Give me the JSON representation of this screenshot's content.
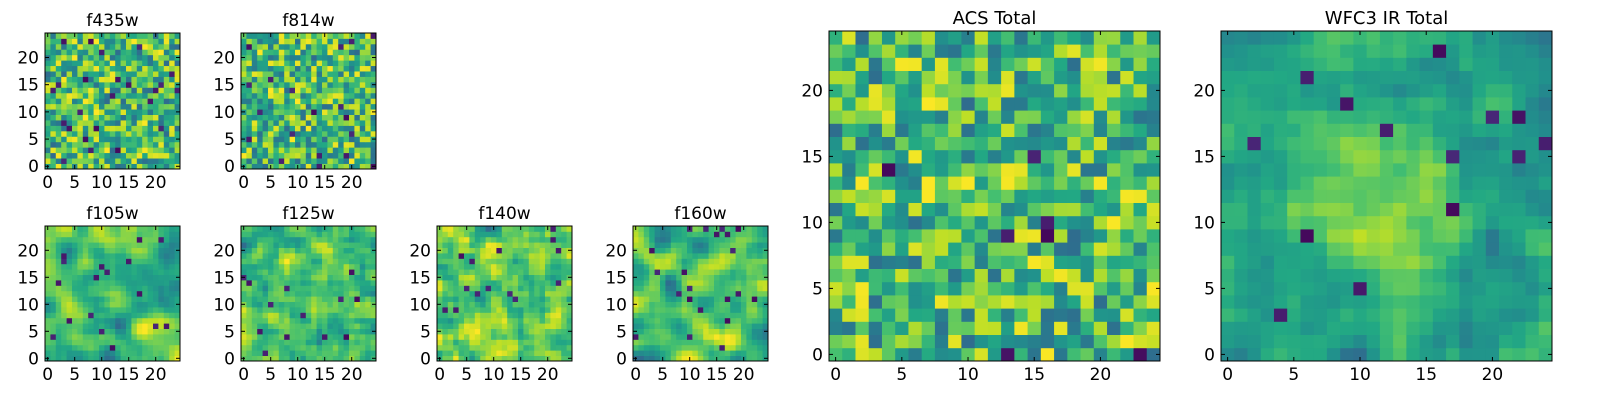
{
  "chart_data": [
    {
      "type": "heatmap",
      "title": "f435w",
      "colormap": "viridis",
      "grid": false,
      "xlim": [
        0,
        24
      ],
      "ylim": [
        0,
        24
      ],
      "xticks": [
        0,
        5,
        10,
        15,
        20
      ],
      "yticks": [
        0,
        5,
        10,
        15,
        20
      ],
      "xtick_labels": [
        "0",
        "5",
        "10",
        "15",
        "20"
      ],
      "ytick_labels": [
        "0",
        "5",
        "10",
        "15",
        "20"
      ],
      "value_range": [
        0,
        1
      ],
      "texture": "pixel noise",
      "seed": 101,
      "smoothness": 0
    },
    {
      "type": "heatmap",
      "title": "f814w",
      "colormap": "viridis",
      "grid": false,
      "xlim": [
        0,
        24
      ],
      "ylim": [
        0,
        24
      ],
      "xticks": [
        0,
        5,
        10,
        15,
        20
      ],
      "yticks": [
        0,
        5,
        10,
        15,
        20
      ],
      "xtick_labels": [
        "0",
        "5",
        "10",
        "15",
        "20"
      ],
      "ytick_labels": [
        "0",
        "5",
        "10",
        "15",
        "20"
      ],
      "value_range": [
        0,
        1
      ],
      "texture": "pixel noise",
      "seed": 202,
      "smoothness": 0
    },
    {
      "type": "heatmap",
      "title": "f105w",
      "colormap": "viridis",
      "grid": false,
      "xlim": [
        0,
        24
      ],
      "ylim": [
        0,
        24
      ],
      "xticks": [
        0,
        5,
        10,
        15,
        20
      ],
      "yticks": [
        0,
        5,
        10,
        15,
        20
      ],
      "xtick_labels": [
        "0",
        "5",
        "10",
        "15",
        "20"
      ],
      "ytick_labels": [
        "0",
        "5",
        "10",
        "15",
        "20"
      ],
      "value_range": [
        0,
        1
      ],
      "texture": "smooth blotches",
      "seed": 303,
      "smoothness": 2
    },
    {
      "type": "heatmap",
      "title": "f125w",
      "colormap": "viridis",
      "grid": false,
      "xlim": [
        0,
        24
      ],
      "ylim": [
        0,
        24
      ],
      "xticks": [
        0,
        5,
        10,
        15,
        20
      ],
      "yticks": [
        0,
        5,
        10,
        15,
        20
      ],
      "xtick_labels": [
        "0",
        "5",
        "10",
        "15",
        "20"
      ],
      "ytick_labels": [
        "0",
        "5",
        "10",
        "15",
        "20"
      ],
      "value_range": [
        0,
        1
      ],
      "texture": "smooth blotches",
      "seed": 404,
      "smoothness": 1
    },
    {
      "type": "heatmap",
      "title": "f140w",
      "colormap": "viridis",
      "grid": false,
      "xlim": [
        0,
        24
      ],
      "ylim": [
        0,
        24
      ],
      "xticks": [
        0,
        5,
        10,
        15,
        20
      ],
      "yticks": [
        0,
        5,
        10,
        15,
        20
      ],
      "xtick_labels": [
        "0",
        "5",
        "10",
        "15",
        "20"
      ],
      "ytick_labels": [
        "0",
        "5",
        "10",
        "15",
        "20"
      ],
      "value_range": [
        0,
        1
      ],
      "texture": "smooth blotches",
      "seed": 505,
      "smoothness": 1
    },
    {
      "type": "heatmap",
      "title": "f160w",
      "colormap": "viridis",
      "grid": false,
      "xlim": [
        0,
        24
      ],
      "ylim": [
        0,
        24
      ],
      "xticks": [
        0,
        5,
        10,
        15,
        20
      ],
      "yticks": [
        0,
        5,
        10,
        15,
        20
      ],
      "xtick_labels": [
        "0",
        "5",
        "10",
        "15",
        "20"
      ],
      "ytick_labels": [
        "0",
        "5",
        "10",
        "15",
        "20"
      ],
      "value_range": [
        0,
        1
      ],
      "texture": "smooth blotches",
      "seed": 606,
      "smoothness": 2
    },
    {
      "type": "heatmap",
      "title": "ACS Total",
      "colormap": "viridis",
      "grid": false,
      "xlim": [
        0,
        24
      ],
      "ylim": [
        0,
        24
      ],
      "xticks": [
        0,
        5,
        10,
        15,
        20
      ],
      "yticks": [
        0,
        5,
        10,
        15,
        20
      ],
      "xtick_labels": [
        "0",
        "5",
        "10",
        "15",
        "20"
      ],
      "ytick_labels": [
        "0",
        "5",
        "10",
        "15",
        "20"
      ],
      "value_range": [
        0,
        1
      ],
      "texture": "pixel noise",
      "seed": 707,
      "smoothness": 0
    },
    {
      "type": "heatmap",
      "title": "WFC3 IR Total",
      "colormap": "viridis",
      "grid": false,
      "xlim": [
        0,
        24
      ],
      "ylim": [
        0,
        24
      ],
      "xticks": [
        0,
        5,
        10,
        15,
        20
      ],
      "yticks": [
        0,
        5,
        10,
        15,
        20
      ],
      "xtick_labels": [
        "0",
        "5",
        "10",
        "15",
        "20"
      ],
      "ytick_labels": [
        "0",
        "5",
        "10",
        "15",
        "20"
      ],
      "value_range": [
        0,
        1
      ],
      "texture": "central bright blob",
      "seed": 808,
      "smoothness": 1
    }
  ]
}
